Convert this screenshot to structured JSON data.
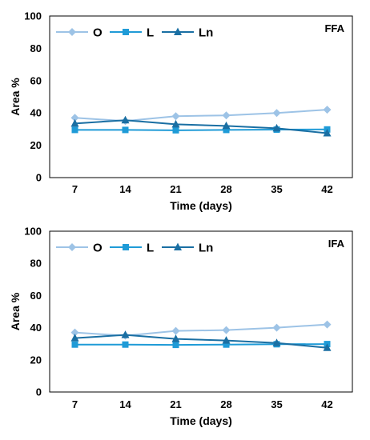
{
  "chart_data": [
    {
      "type": "line",
      "panel_label": "FFA",
      "xlabel": "Time (days)",
      "ylabel": "Area %",
      "x": [
        7,
        14,
        21,
        28,
        35,
        42
      ],
      "ylim": [
        0,
        100
      ],
      "yticks": [
        0,
        20,
        40,
        60,
        80,
        100
      ],
      "grid": false,
      "legend_position": "top-left",
      "series": [
        {
          "name": "O",
          "marker": "diamond",
          "color": "#9DC3E6",
          "values": [
            37,
            35,
            38,
            38.5,
            40,
            42
          ]
        },
        {
          "name": "L",
          "marker": "square",
          "color": "#1F9BD7",
          "values": [
            29.5,
            29.5,
            29.3,
            29.5,
            29.7,
            29.8
          ]
        },
        {
          "name": "Ln",
          "marker": "triangle",
          "color": "#1A6FA3",
          "values": [
            33.5,
            35.5,
            33,
            32,
            30.5,
            27.5
          ]
        }
      ]
    },
    {
      "type": "line",
      "panel_label": "IFA",
      "xlabel": "Time (days)",
      "ylabel": "Area %",
      "x": [
        7,
        14,
        21,
        28,
        35,
        42
      ],
      "ylim": [
        0,
        100
      ],
      "yticks": [
        0,
        20,
        40,
        60,
        80,
        100
      ],
      "grid": false,
      "legend_position": "top-left",
      "series": [
        {
          "name": "O",
          "marker": "diamond",
          "color": "#9DC3E6",
          "values": [
            37,
            35,
            38,
            38.5,
            40,
            42
          ]
        },
        {
          "name": "L",
          "marker": "square",
          "color": "#1F9BD7",
          "values": [
            29.5,
            29.5,
            29.3,
            29.5,
            29.7,
            29.8
          ]
        },
        {
          "name": "Ln",
          "marker": "triangle",
          "color": "#1A6FA3",
          "values": [
            33.5,
            35.5,
            33,
            32,
            30.5,
            27.5
          ]
        }
      ]
    }
  ]
}
